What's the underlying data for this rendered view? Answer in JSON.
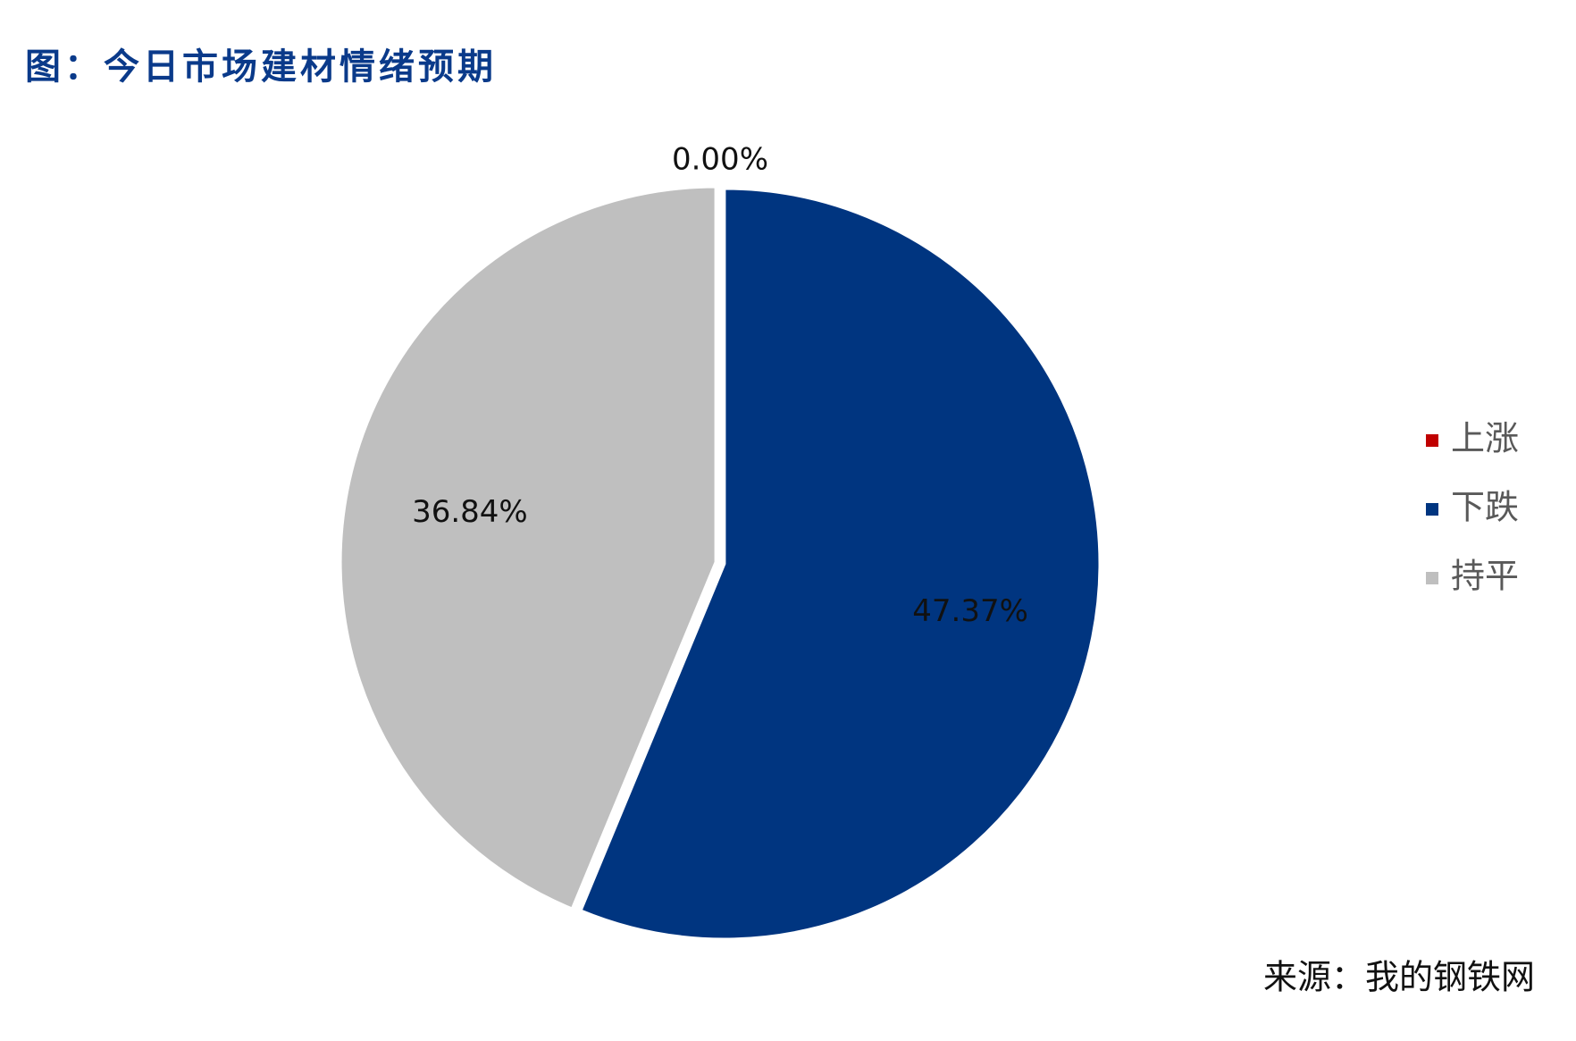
{
  "chart_data": {
    "type": "pie",
    "title": "图：今日市场建材情绪预期",
    "categories": [
      "上涨",
      "下跌",
      "持平"
    ],
    "values": [
      0,
      47.37,
      36.84
    ],
    "value_labels": [
      "0.00%",
      "47.37%",
      "36.84%"
    ],
    "colors": [
      "#c00000",
      "#003580",
      "#bfbfbf"
    ],
    "legend": "right",
    "source": "来源：我的钢铁网"
  }
}
